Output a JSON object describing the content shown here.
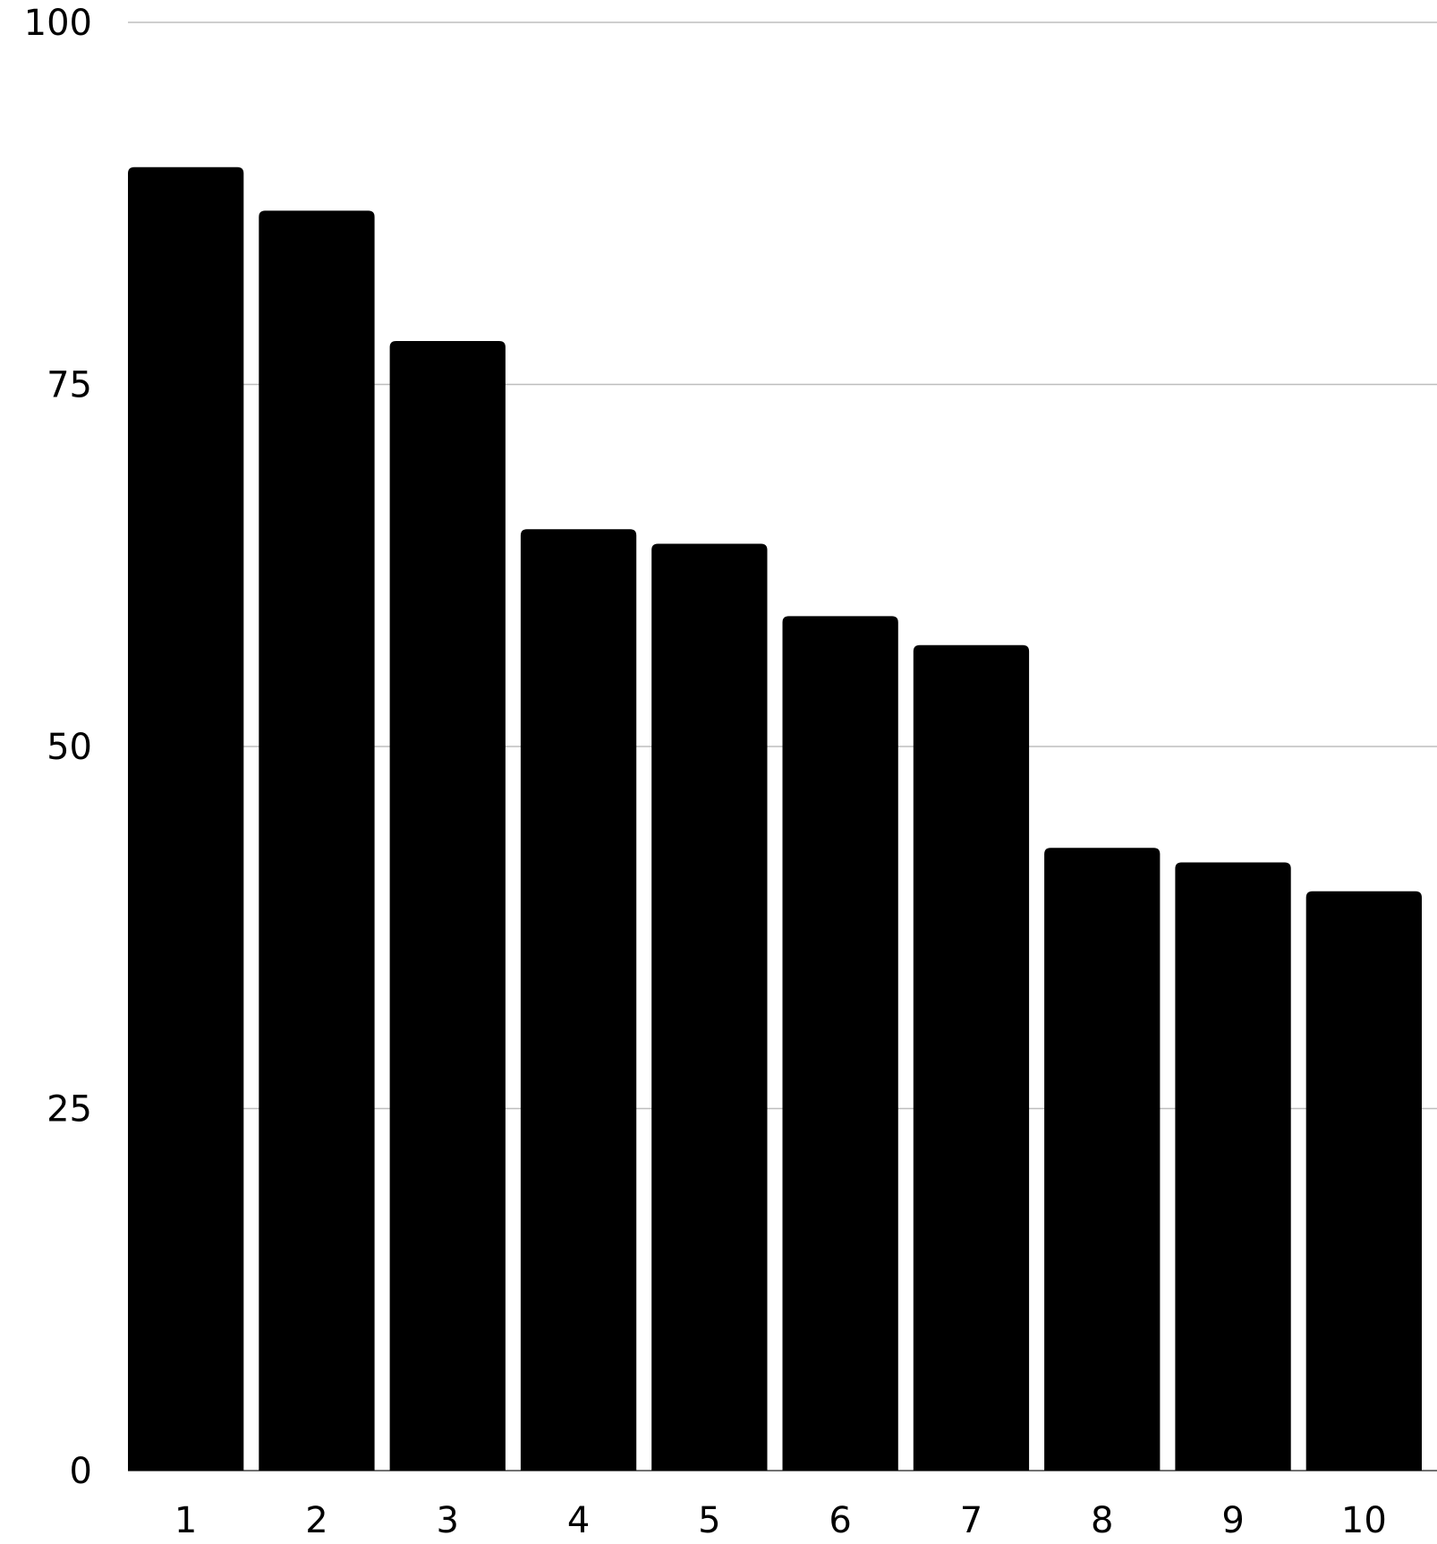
{
  "chart_data": {
    "type": "bar",
    "categories": [
      "1",
      "2",
      "3",
      "4",
      "5",
      "6",
      "7",
      "8",
      "9",
      "10"
    ],
    "values": [
      90,
      87,
      78,
      65,
      64,
      59,
      57,
      43,
      42,
      40
    ],
    "title": "",
    "xlabel": "",
    "ylabel": "",
    "ylim": [
      0,
      100
    ],
    "yticks": [
      "0",
      "25",
      "50",
      "75",
      "100"
    ],
    "grid": true,
    "bar_color": "#000000",
    "grid_color": "#bdbdbd"
  }
}
